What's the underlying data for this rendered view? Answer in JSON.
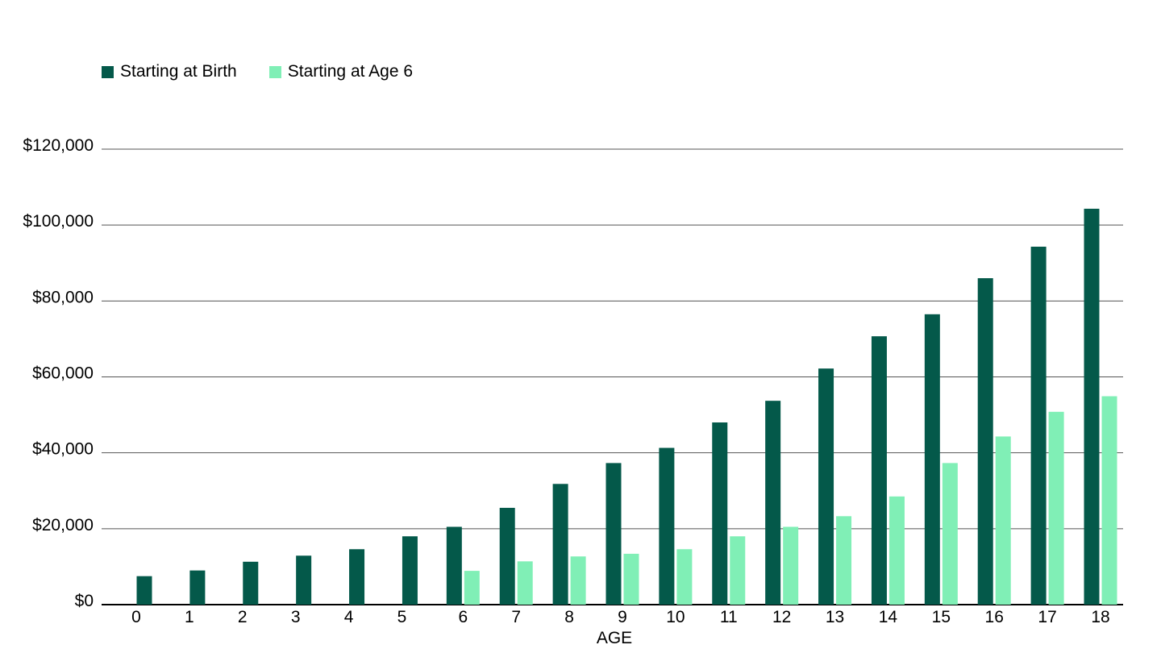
{
  "chart_data": {
    "type": "bar",
    "xlabel": "AGE",
    "ylabel": "",
    "ylim": [
      0,
      120000
    ],
    "yticks": [
      0,
      20000,
      40000,
      60000,
      80000,
      100000,
      120000
    ],
    "ytick_labels": [
      "$0",
      "$20,000",
      "$40,000",
      "$60,000",
      "$80,000",
      "$100,000",
      "$120,000"
    ],
    "categories": [
      "0",
      "1",
      "2",
      "3",
      "4",
      "5",
      "6",
      "7",
      "8",
      "9",
      "10",
      "11",
      "12",
      "13",
      "14",
      "15",
      "16",
      "17",
      "18"
    ],
    "series": [
      {
        "name": "Starting at Birth",
        "color": "#04594a",
        "values": [
          7500,
          9000,
          11300,
          12900,
          14600,
          18000,
          20500,
          25500,
          31800,
          37300,
          41300,
          48000,
          53700,
          62200,
          70700,
          76500,
          86000,
          94300,
          104300
        ]
      },
      {
        "name": "Starting at Age 6",
        "color": "#80efb6",
        "values": [
          null,
          null,
          null,
          null,
          null,
          null,
          8900,
          11400,
          12700,
          13400,
          14600,
          18000,
          20500,
          23300,
          28500,
          37300,
          44300,
          50800,
          54900
        ]
      }
    ],
    "legend_position": "top-left",
    "grid": true
  }
}
